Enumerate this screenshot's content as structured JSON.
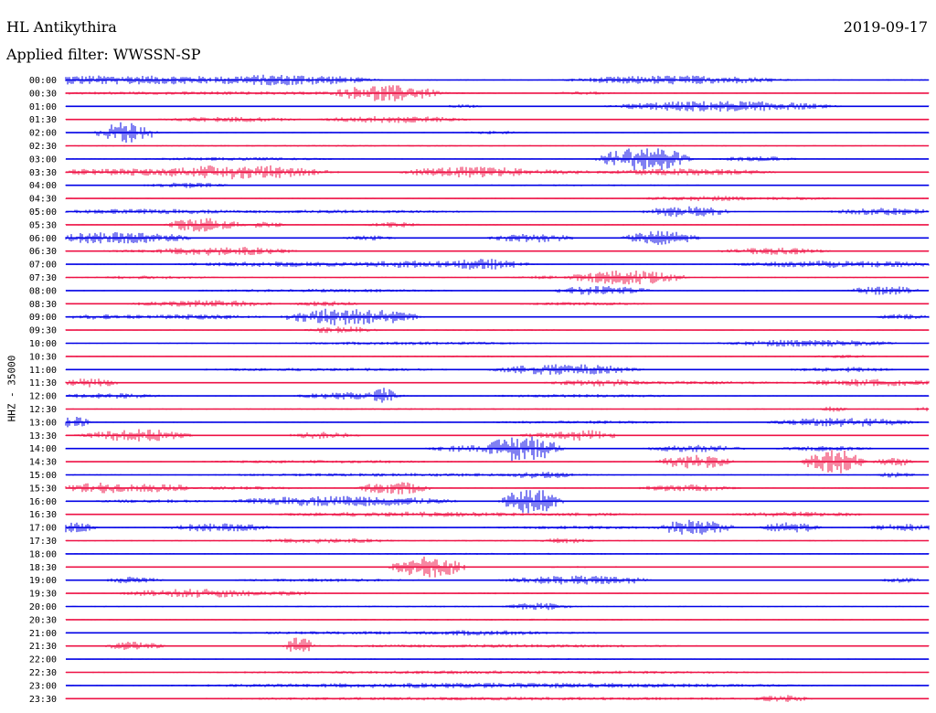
{
  "header": {
    "title": "HL Antikythira",
    "date": "2019-09-17",
    "filter_label": "Applied filter: WWSSN-SP",
    "channel_label": "HHZ - 35000"
  },
  "colors": {
    "even_trace": "#0000e6",
    "odd_trace": "#ee1144",
    "background": "#ffffff",
    "text": "#000000"
  },
  "chart_data": {
    "type": "line",
    "title": "HL Antikythira",
    "subtitle": "Applied filter: WWSSN-SP",
    "ylabel": "HHZ - 35000",
    "date": "2019-09-17",
    "minutes_per_trace": 30,
    "trace_colors": [
      "#0000e6",
      "#ee1144"
    ],
    "rows": [
      {
        "label": "00:00",
        "bursts": [
          [
            5,
            60,
            5
          ],
          [
            15,
            40,
            3
          ],
          [
            25,
            25,
            6
          ],
          [
            71,
            30,
            5
          ]
        ]
      },
      {
        "label": "00:30",
        "bursts": [
          [
            37,
            15,
            9
          ],
          [
            60,
            10,
            2
          ],
          [
            20,
            80,
            2
          ]
        ]
      },
      {
        "label": "01:00",
        "bursts": [
          [
            76,
            30,
            6
          ],
          [
            46,
            6,
            2
          ]
        ]
      },
      {
        "label": "01:30",
        "bursts": [
          [
            19,
            20,
            3
          ],
          [
            38,
            20,
            4
          ],
          [
            43,
            12,
            2
          ]
        ]
      },
      {
        "label": "02:00",
        "bursts": [
          [
            7,
            8,
            12
          ],
          [
            50,
            10,
            2
          ]
        ]
      },
      {
        "label": "02:30",
        "bursts": [
          [
            30,
            80,
            1
          ]
        ]
      },
      {
        "label": "03:00",
        "bursts": [
          [
            67,
            12,
            14
          ],
          [
            80,
            12,
            3
          ],
          [
            20,
            30,
            2
          ]
        ]
      },
      {
        "label": "03:30",
        "bursts": [
          [
            10,
            50,
            4
          ],
          [
            20,
            25,
            8
          ],
          [
            47,
            20,
            6
          ],
          [
            72,
            25,
            4
          ],
          [
            52,
            30,
            3
          ]
        ]
      },
      {
        "label": "04:00",
        "bursts": [
          [
            14,
            12,
            3
          ],
          [
            60,
            60,
            1
          ]
        ]
      },
      {
        "label": "04:30",
        "bursts": [
          [
            74,
            18,
            3
          ],
          [
            84,
            14,
            2
          ]
        ]
      },
      {
        "label": "05:00",
        "bursts": [
          [
            10,
            30,
            3
          ],
          [
            72,
            12,
            6
          ],
          [
            95,
            15,
            4
          ],
          [
            30,
            50,
            2
          ]
        ]
      },
      {
        "label": "05:30",
        "bursts": [
          [
            16,
            10,
            8
          ],
          [
            23,
            6,
            4
          ],
          [
            38,
            8,
            3
          ]
        ]
      },
      {
        "label": "06:00",
        "bursts": [
          [
            6,
            20,
            7
          ],
          [
            54,
            12,
            5
          ],
          [
            69,
            10,
            8
          ],
          [
            35,
            8,
            3
          ]
        ]
      },
      {
        "label": "06:30",
        "bursts": [
          [
            18,
            20,
            5
          ],
          [
            82,
            15,
            4
          ],
          [
            10,
            15,
            2
          ]
        ]
      },
      {
        "label": "07:00",
        "bursts": [
          [
            25,
            30,
            3
          ],
          [
            40,
            20,
            4
          ],
          [
            48,
            14,
            6
          ],
          [
            90,
            30,
            4
          ]
        ]
      },
      {
        "label": "07:30",
        "bursts": [
          [
            65,
            16,
            8
          ],
          [
            55,
            10,
            2
          ],
          [
            10,
            20,
            2
          ]
        ]
      },
      {
        "label": "08:00",
        "bursts": [
          [
            62,
            14,
            5
          ],
          [
            95,
            10,
            5
          ],
          [
            30,
            40,
            2
          ]
        ]
      },
      {
        "label": "08:30",
        "bursts": [
          [
            16,
            20,
            4
          ],
          [
            30,
            10,
            3
          ],
          [
            60,
            20,
            2
          ]
        ]
      },
      {
        "label": "09:00",
        "bursts": [
          [
            33,
            18,
            10
          ],
          [
            15,
            20,
            3
          ],
          [
            5,
            15,
            3
          ],
          [
            97,
            8,
            3
          ]
        ]
      },
      {
        "label": "09:30",
        "bursts": [
          [
            32,
            10,
            4
          ],
          [
            50,
            40,
            1
          ]
        ]
      },
      {
        "label": "10:00",
        "bursts": [
          [
            86,
            25,
            4
          ],
          [
            40,
            40,
            2
          ]
        ]
      },
      {
        "label": "10:30",
        "bursts": [
          [
            50,
            80,
            1
          ],
          [
            90,
            10,
            2
          ]
        ]
      },
      {
        "label": "11:00",
        "bursts": [
          [
            58,
            20,
            6
          ],
          [
            90,
            15,
            3
          ],
          [
            30,
            40,
            2
          ]
        ]
      },
      {
        "label": "11:30",
        "bursts": [
          [
            3,
            8,
            5
          ],
          [
            62,
            15,
            4
          ],
          [
            93,
            20,
            4
          ],
          [
            70,
            40,
            2
          ]
        ]
      },
      {
        "label": "12:00",
        "bursts": [
          [
            5,
            15,
            3
          ],
          [
            33,
            15,
            4
          ],
          [
            37,
            4,
            9
          ],
          [
            60,
            30,
            2
          ]
        ]
      },
      {
        "label": "12:30",
        "bursts": [
          [
            40,
            80,
            1
          ],
          [
            89,
            4,
            3
          ],
          [
            100,
            4,
            3
          ]
        ]
      },
      {
        "label": "13:00",
        "bursts": [
          [
            1,
            4,
            7
          ],
          [
            90,
            20,
            5
          ],
          [
            60,
            30,
            2
          ]
        ]
      },
      {
        "label": "13:30",
        "bursts": [
          [
            8,
            15,
            7
          ],
          [
            30,
            10,
            4
          ],
          [
            60,
            10,
            6
          ],
          [
            55,
            6,
            3
          ]
        ]
      },
      {
        "label": "14:00",
        "bursts": [
          [
            47,
            12,
            4
          ],
          [
            53,
            10,
            15
          ],
          [
            73,
            14,
            4
          ],
          [
            88,
            14,
            3
          ]
        ]
      },
      {
        "label": "14:30",
        "bursts": [
          [
            73,
            10,
            8
          ],
          [
            89,
            8,
            14
          ],
          [
            96,
            6,
            5
          ],
          [
            30,
            40,
            2
          ]
        ]
      },
      {
        "label": "15:00",
        "bursts": [
          [
            55,
            10,
            4
          ],
          [
            96,
            6,
            3
          ],
          [
            40,
            60,
            2
          ]
        ]
      },
      {
        "label": "15:30",
        "bursts": [
          [
            4,
            10,
            6
          ],
          [
            10,
            12,
            5
          ],
          [
            38,
            10,
            7
          ],
          [
            72,
            14,
            4
          ],
          [
            20,
            20,
            2
          ]
        ]
      },
      {
        "label": "16:00",
        "bursts": [
          [
            32,
            30,
            6
          ],
          [
            54,
            8,
            14
          ],
          [
            10,
            20,
            2
          ]
        ]
      },
      {
        "label": "16:30",
        "bursts": [
          [
            40,
            40,
            3
          ],
          [
            85,
            20,
            3
          ],
          [
            60,
            20,
            2
          ]
        ]
      },
      {
        "label": "17:00",
        "bursts": [
          [
            1,
            6,
            6
          ],
          [
            18,
            15,
            5
          ],
          [
            73,
            10,
            9
          ],
          [
            84,
            8,
            6
          ],
          [
            97,
            10,
            4
          ],
          [
            60,
            30,
            2
          ]
        ]
      },
      {
        "label": "17:30",
        "bursts": [
          [
            30,
            20,
            3
          ],
          [
            58,
            8,
            3
          ],
          [
            50,
            60,
            1
          ]
        ]
      },
      {
        "label": "18:00",
        "bursts": [
          [
            50,
            80,
            1
          ]
        ]
      },
      {
        "label": "18:30",
        "bursts": [
          [
            42,
            10,
            12
          ],
          [
            60,
            30,
            1
          ]
        ]
      },
      {
        "label": "19:00",
        "bursts": [
          [
            8,
            8,
            4
          ],
          [
            59,
            20,
            5
          ],
          [
            65,
            6,
            4
          ],
          [
            97,
            6,
            3
          ],
          [
            30,
            30,
            2
          ]
        ]
      },
      {
        "label": "19:30",
        "bursts": [
          [
            15,
            20,
            5
          ],
          [
            25,
            10,
            3
          ],
          [
            50,
            40,
            1
          ]
        ]
      },
      {
        "label": "20:00",
        "bursts": [
          [
            55,
            10,
            4
          ],
          [
            40,
            60,
            1
          ]
        ]
      },
      {
        "label": "20:30",
        "bursts": [
          [
            50,
            80,
            1
          ]
        ]
      },
      {
        "label": "21:00",
        "bursts": [
          [
            48,
            20,
            3
          ],
          [
            40,
            60,
            2
          ]
        ]
      },
      {
        "label": "21:30",
        "bursts": [
          [
            8,
            8,
            5
          ],
          [
            27,
            4,
            10
          ],
          [
            50,
            60,
            2
          ]
        ]
      },
      {
        "label": "22:00",
        "bursts": [
          [
            50,
            80,
            1
          ]
        ]
      },
      {
        "label": "22:30",
        "bursts": [
          [
            50,
            90,
            2
          ]
        ]
      },
      {
        "label": "23:00",
        "bursts": [
          [
            50,
            90,
            3
          ]
        ]
      },
      {
        "label": "23:30",
        "bursts": [
          [
            50,
            90,
            2
          ],
          [
            83,
            8,
            4
          ]
        ]
      }
    ]
  }
}
